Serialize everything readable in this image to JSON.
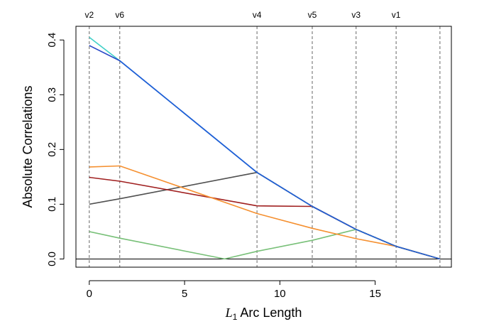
{
  "chart_data": {
    "type": "line",
    "title": "",
    "xlabel": "L1 Arc Length",
    "xlabel_parts": {
      "symbol": "L",
      "subscript": "1",
      "rest": " Arc Length"
    },
    "ylabel": "Absolute Correlations",
    "xlim": [
      -0.7,
      19.0
    ],
    "ylim": [
      -0.015,
      0.425
    ],
    "x_ticks": [
      0,
      5,
      10,
      15
    ],
    "x_tick_labels": [
      "0",
      "5",
      "10",
      "15"
    ],
    "y_ticks": [
      0.0,
      0.1,
      0.2,
      0.3,
      0.4
    ],
    "y_tick_labels": [
      "0.0",
      "0.1",
      "0.2",
      "0.3",
      "0.4"
    ],
    "steps": [
      {
        "x": 0.0,
        "label": "v2"
      },
      {
        "x": 1.6,
        "label": "v6"
      },
      {
        "x": 8.8,
        "label": "v4"
      },
      {
        "x": 11.7,
        "label": "v5"
      },
      {
        "x": 14.0,
        "label": "v3"
      },
      {
        "x": 16.1,
        "label": "v1"
      },
      {
        "x": 18.4,
        "label": ""
      }
    ],
    "reference_line_y": 0,
    "series": [
      {
        "name": "v2",
        "color": "#40d0c8",
        "x": [
          0,
          1.6,
          8.8,
          11.7,
          14.0,
          16.1,
          18.4
        ],
        "y": [
          0.405,
          0.362,
          0.158,
          0.096,
          0.054,
          0.023,
          0.0
        ]
      },
      {
        "name": "v6",
        "color": "#2848c8",
        "x": [
          0,
          1.6,
          8.8,
          11.7,
          14.0,
          16.1,
          18.4
        ],
        "y": [
          0.39,
          0.362,
          0.158,
          0.096,
          0.054,
          0.023,
          0.0
        ]
      },
      {
        "name": "v4",
        "color": "#505050",
        "x": [
          0,
          1.6,
          8.8,
          11.7,
          14.0,
          16.1,
          18.4
        ],
        "y": [
          0.1,
          0.11,
          0.158,
          0.096,
          0.054,
          0.023,
          0.0
        ]
      },
      {
        "name": "v5",
        "color": "#a02020",
        "x": [
          0,
          1.6,
          8.8,
          11.7,
          14.0,
          16.1,
          18.4
        ],
        "y": [
          0.149,
          0.142,
          0.097,
          0.096,
          0.054,
          0.023,
          0.0
        ]
      },
      {
        "name": "v3",
        "color": "#78c078",
        "x": [
          0,
          1.6,
          7.1,
          8.8,
          11.7,
          14.0,
          16.1,
          18.4
        ],
        "y": [
          0.05,
          0.038,
          0.0,
          0.014,
          0.034,
          0.054,
          0.023,
          0.0
        ]
      },
      {
        "name": "v1",
        "color": "#f59030",
        "x": [
          0,
          1.6,
          8.8,
          11.7,
          14.0,
          16.1,
          18.4
        ],
        "y": [
          0.168,
          0.17,
          0.083,
          0.056,
          0.037,
          0.023,
          0.0
        ]
      },
      {
        "name": "blue-path",
        "color": "#2060d8",
        "x": [
          1.6,
          8.8,
          11.7,
          14.0,
          16.1,
          18.4
        ],
        "y": [
          0.362,
          0.158,
          0.096,
          0.054,
          0.023,
          0.0
        ]
      }
    ]
  }
}
